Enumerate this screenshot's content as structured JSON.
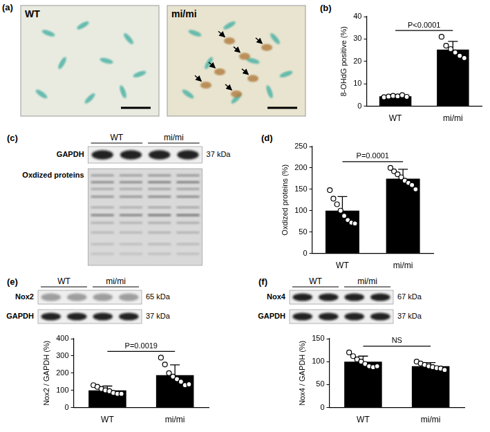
{
  "chart_data": [
    {
      "panel": "(b)",
      "type": "bar",
      "categories": [
        "WT",
        "mi/mi"
      ],
      "values": [
        4.4,
        25.3
      ],
      "errors": [
        0.5,
        3.6
      ],
      "points": [
        [
          4.0,
          4.3,
          4.6,
          4.4,
          4.9,
          4.2
        ],
        [
          31,
          27,
          25.5,
          24,
          22.5,
          21.5
        ]
      ],
      "y_label": "8-OHdG positive (%)",
      "ylim": [
        0,
        40
      ],
      "yticks": [
        0,
        10,
        20,
        30,
        40
      ],
      "annotation": "P<0.0001",
      "color": "#000000",
      "grid": false
    },
    {
      "panel": "(d)",
      "type": "bar",
      "categories": [
        "WT",
        "mi/mi"
      ],
      "values": [
        100,
        175
      ],
      "errors": [
        33,
        22
      ],
      "points": [
        [
          148,
          128,
          115,
          100,
          88,
          78,
          72,
          70
        ],
        [
          200,
          192,
          185,
          178,
          170,
          165,
          160,
          150
        ]
      ],
      "y_label": "Oxdized proteins (%)",
      "ylim": [
        0,
        250
      ],
      "yticks": [
        0,
        50,
        100,
        150,
        200,
        250
      ],
      "annotation": "P=0.0001",
      "color": "#000000",
      "grid": false
    },
    {
      "type": "bar",
      "categories": [
        "WT",
        "mi/mi"
      ],
      "values": [
        100,
        188
      ],
      "errors": [
        25,
        60
      ],
      "points": [
        [
          130,
          120,
          108,
          100,
          95,
          85,
          80,
          80
        ],
        [
          290,
          250,
          200,
          180,
          165,
          150,
          130,
          135
        ]
      ],
      "y_label": "Nox2 / GAPDH (%)",
      "ylim": [
        0,
        400
      ],
      "yticks": [
        0,
        100,
        200,
        300,
        400
      ],
      "annotation": "P=0.0019",
      "color": "#000000",
      "grid": false
    },
    {
      "type": "bar",
      "categories": [
        "WT",
        "mi/mi"
      ],
      "values": [
        100,
        90
      ],
      "errors": [
        12,
        8
      ],
      "points": [
        [
          120,
          112,
          105,
          100,
          95,
          90,
          88,
          90
        ],
        [
          100,
          96,
          93,
          90,
          88,
          86,
          85,
          82
        ]
      ],
      "y_label": "Nox4 / GAPDH (%)",
      "ylim": [
        0,
        150
      ],
      "yticks": [
        0,
        50,
        100,
        150
      ],
      "annotation": "NS",
      "color": "#000000",
      "grid": false
    }
  ],
  "images": {
    "panel": "(a)",
    "labels": [
      "WT",
      "mi/mi"
    ]
  },
  "blots": [
    {
      "panel": "(c)",
      "groups": [
        "WT",
        "mi/mi"
      ],
      "rows": [
        {
          "label": "GAPDH",
          "kda": "37 kDa"
        },
        {
          "label": "Oxdized proteins"
        }
      ]
    },
    {
      "panel": "(e)",
      "groups": [
        "WT",
        "mi/mi"
      ],
      "rows": [
        {
          "label": "Nox2",
          "kda": "65 kDa"
        },
        {
          "label": "GAPDH",
          "kda": "37 kDa"
        }
      ]
    },
    {
      "panel": "(f)",
      "groups": [
        "WT",
        "mi/mi"
      ],
      "rows": [
        {
          "label": "Nox4",
          "kda": "67 kDa"
        },
        {
          "label": "GAPDH",
          "kda": "37 kDa"
        }
      ]
    }
  ]
}
